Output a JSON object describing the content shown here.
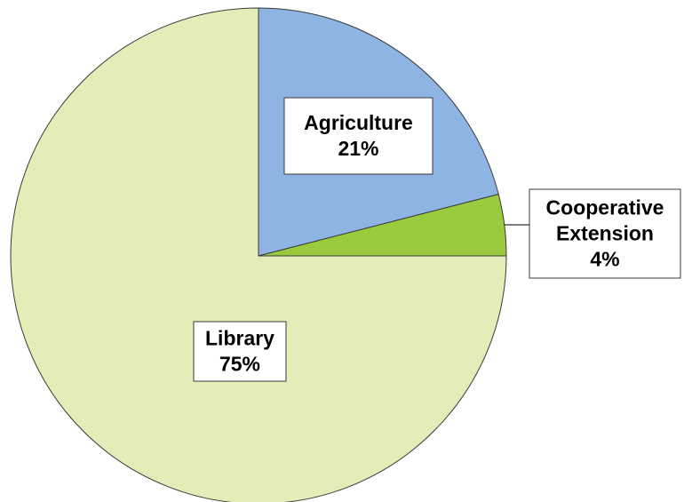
{
  "chart_data": {
    "type": "pie",
    "slices": [
      {
        "label": "Agriculture",
        "value": 21,
        "value_label": "21%",
        "color": "#8db4e2"
      },
      {
        "label": "Cooperative Extension",
        "value": 4,
        "value_label": "4%",
        "color": "#9bca3e"
      },
      {
        "label": "Library",
        "value": 75,
        "value_label": "75%",
        "color": "#e4ecb8"
      }
    ],
    "start": "12 o'clock",
    "direction": "clockwise",
    "legend": "none"
  }
}
